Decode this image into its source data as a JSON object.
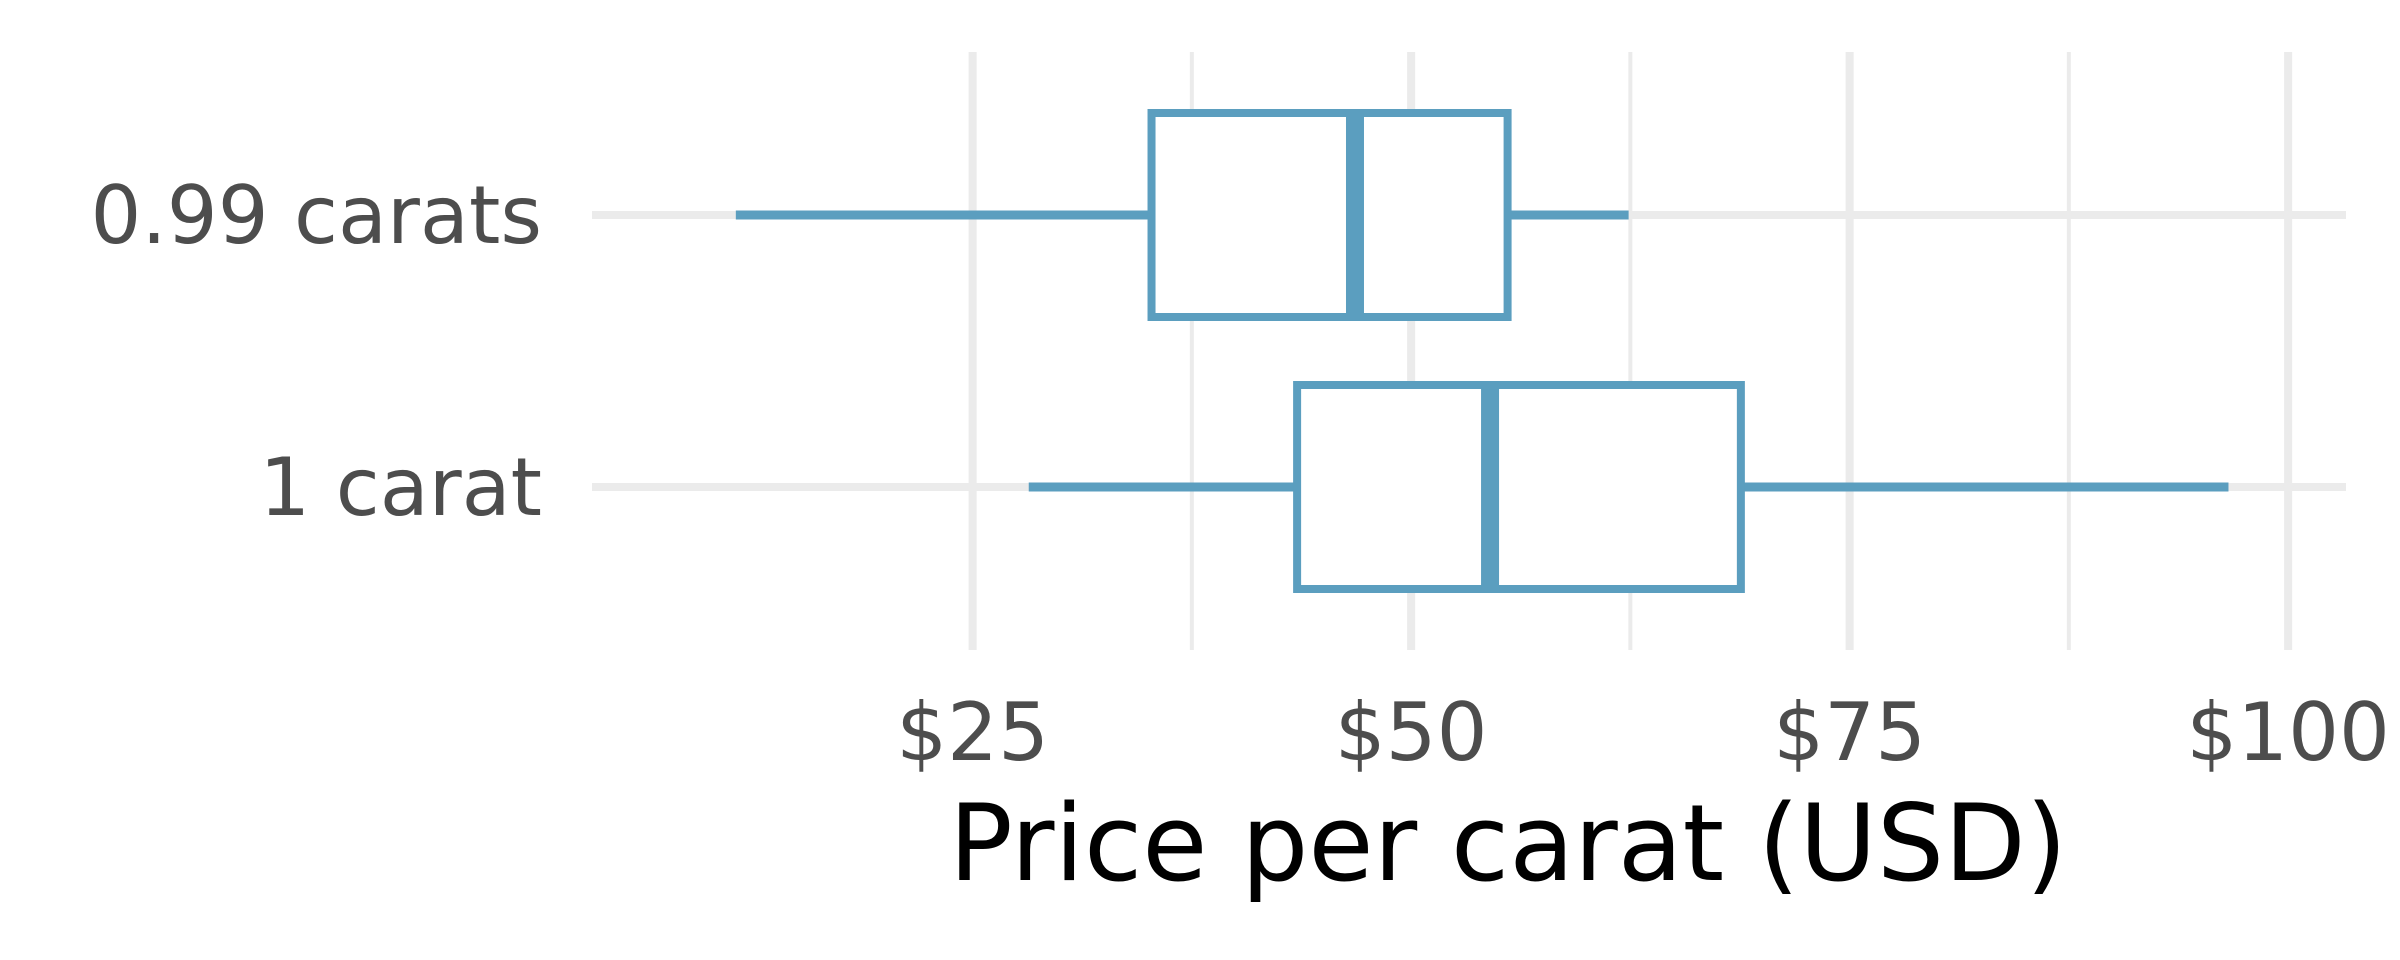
{
  "chart_data": {
    "type": "boxplot",
    "orientation": "horizontal",
    "xlabel": "Price per carat (USD)",
    "ylabel": "",
    "xlim": [
      3.3,
      103.3
    ],
    "x_ticks": [
      {
        "value": 25,
        "label": "$25"
      },
      {
        "value": 50,
        "label": "$50"
      },
      {
        "value": 75,
        "label": "$75"
      },
      {
        "value": 100,
        "label": "$100"
      }
    ],
    "x_minor_ticks": [
      37.5,
      62.5,
      87.5
    ],
    "grid": true,
    "categories": [
      "0.99 carats",
      "1 carat"
    ],
    "boxes": [
      {
        "name": "0.99 carats",
        "min": 11.5,
        "q1": 35.2,
        "median": 46.8,
        "q3": 55.5,
        "max": 62.4
      },
      {
        "name": "1 carat",
        "min": 28.2,
        "q1": 43.5,
        "median": 54.5,
        "q3": 68.8,
        "max": 96.6
      }
    ],
    "color": "#5b9ebf"
  }
}
